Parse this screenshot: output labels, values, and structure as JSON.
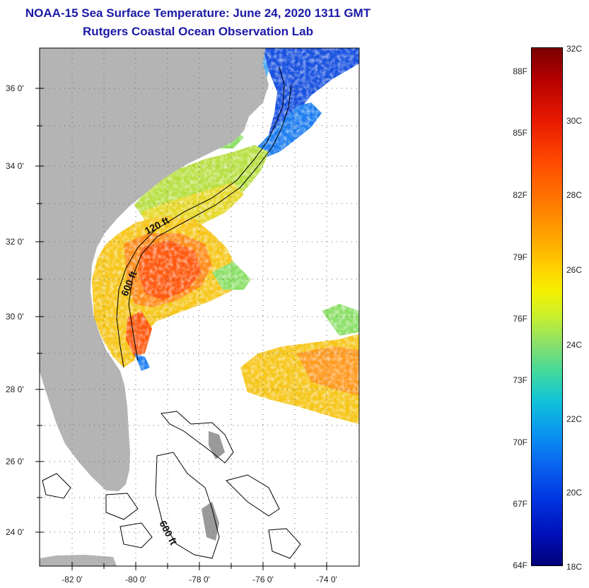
{
  "header": {
    "title": "NOAA-15 Sea Surface Temperature:  June 24, 2020 1311 GMT",
    "subtitle": "Rutgers Coastal Ocean Observation Lab"
  },
  "map": {
    "lat_ticks": [
      "36 0'",
      "34 0'",
      "32 0'",
      "30 0'",
      "28 0'",
      "26 0'",
      "24 0'"
    ],
    "lon_ticks": [
      "-82 0'",
      "-80 0'",
      "-78 0'",
      "-76 0'",
      "-74 0'"
    ],
    "contour_labels": [
      "120 ft",
      "600 ft",
      "600 ft"
    ],
    "colors": {
      "land": "#b4b4b4",
      "warm_core": "#ff5a10",
      "shelf_water": "#f6c61a",
      "northern_cool": "#1a52e0"
    }
  },
  "colorbar": {
    "fahrenheit": [
      "88F",
      "85F",
      "82F",
      "79F",
      "76F",
      "73F",
      "70F",
      "67F",
      "64F"
    ],
    "celsius": [
      "32C",
      "30C",
      "28C",
      "26C",
      "24C",
      "22C",
      "20C",
      "18C"
    ]
  }
}
